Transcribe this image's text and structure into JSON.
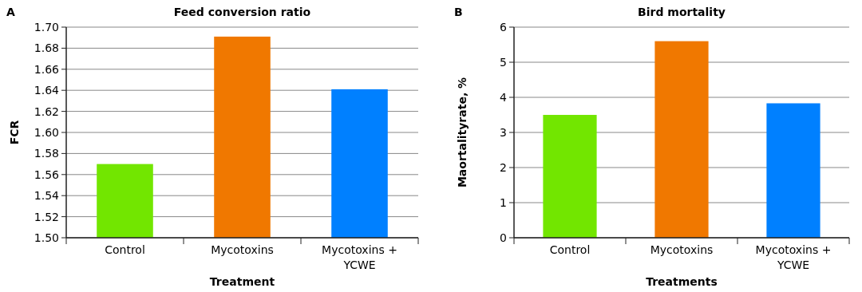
{
  "chart_data": [
    {
      "type": "bar",
      "title": "Feed conversion ratio",
      "xlabel": "Treatment",
      "ylabel": "FCR",
      "annotations": [
        "A"
      ],
      "categories": [
        "Control",
        "Mycotoxins",
        "Mycotoxins + YCWE"
      ],
      "values": [
        1.57,
        1.691,
        1.641
      ],
      "colors": [
        "#72e600",
        "#f07800",
        "#0080ff"
      ],
      "ylim": [
        1.5,
        1.7
      ],
      "yticks": [
        {
          "value": 1.5,
          "label": "1.50"
        },
        {
          "value": 1.52,
          "label": "1.52"
        },
        {
          "value": 1.54,
          "label": "1.54"
        },
        {
          "value": 1.56,
          "label": "1.56"
        },
        {
          "value": 1.58,
          "label": "1.58"
        },
        {
          "value": 1.6,
          "label": "1.60"
        },
        {
          "value": 1.62,
          "label": "1.62"
        },
        {
          "value": 1.64,
          "label": "1.64"
        },
        {
          "value": 1.66,
          "label": "1.66"
        },
        {
          "value": 1.68,
          "label": "1.68"
        },
        {
          "value": 1.7,
          "label": "1.70"
        }
      ],
      "grid": "y"
    },
    {
      "type": "bar",
      "title": "Bird mortality",
      "xlabel": "Treatments",
      "ylabel": "Maortalityrate, %",
      "annotations": [
        "B"
      ],
      "categories": [
        "Control",
        "Mycotoxins",
        "Mycotoxins + YCWE"
      ],
      "values": [
        3.5,
        5.6,
        3.83
      ],
      "colors": [
        "#72e600",
        "#f07800",
        "#0080ff"
      ],
      "ylim": [
        0,
        6
      ],
      "yticks": [
        0,
        1,
        2,
        3,
        4,
        5,
        6
      ],
      "grid": "y"
    }
  ]
}
